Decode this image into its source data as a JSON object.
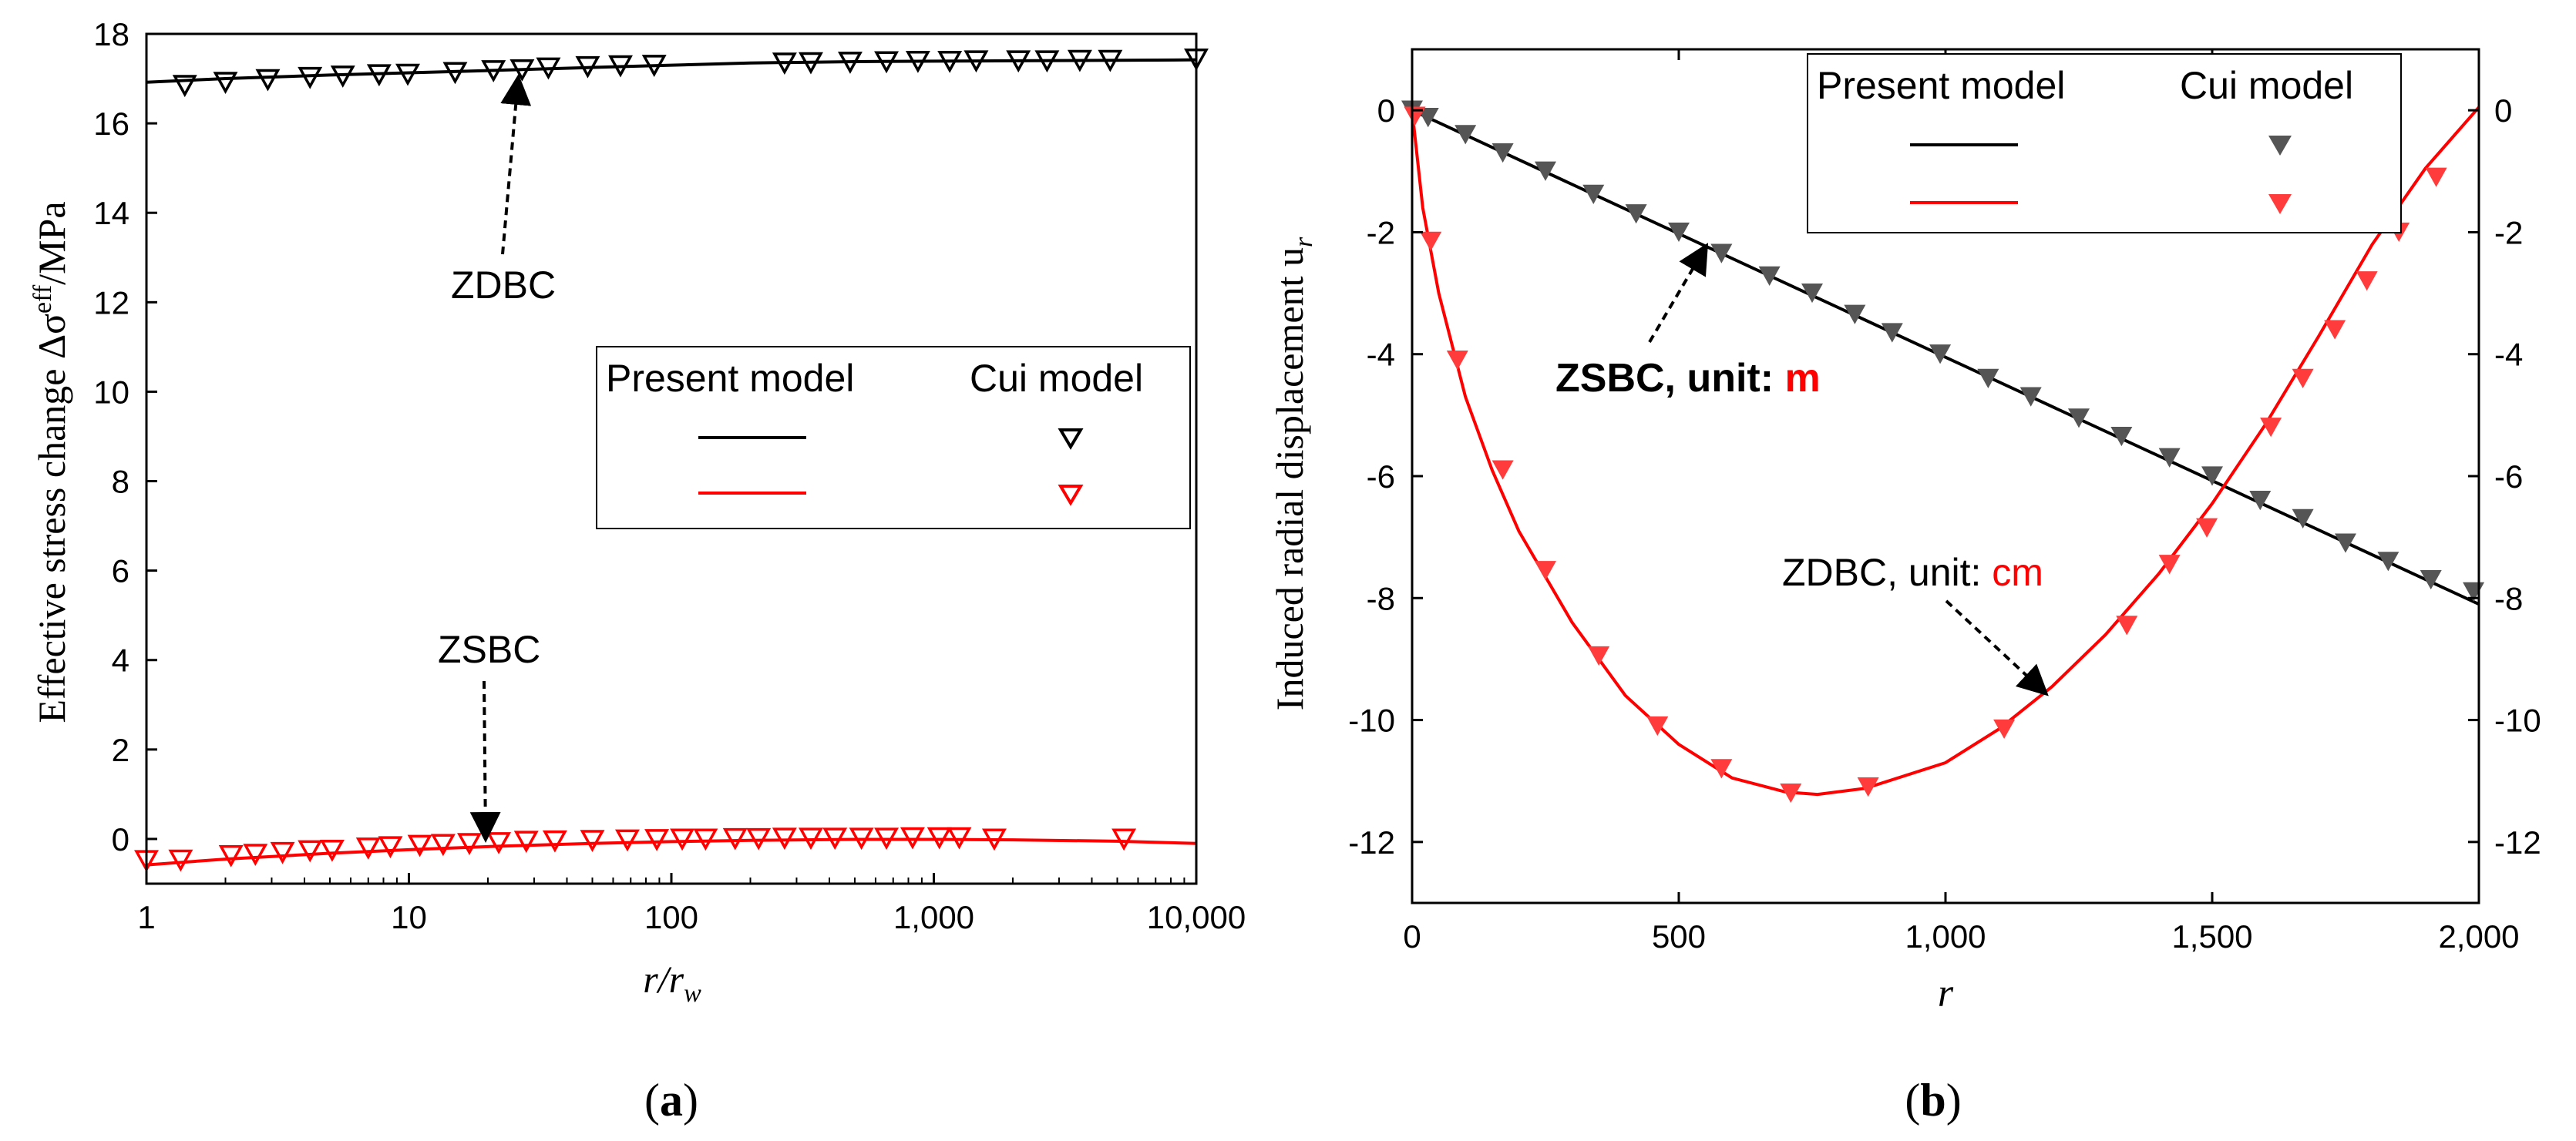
{
  "chart_data": [
    {
      "type": "line",
      "panel_label": "(a)",
      "ylabel_text": "Effective stress change Δσ",
      "ylabel_sup": "eff",
      "ylabel_unit": "/MPa",
      "xlabel_main": "r/r",
      "xlabel_sub": "w",
      "xscale": "log",
      "xlim": [
        1,
        10000
      ],
      "ylim": [
        -1,
        18
      ],
      "xticks": [
        1,
        10,
        100,
        1000,
        10000
      ],
      "xtick_labels": [
        "1",
        "10",
        "100",
        "1,000",
        "10,000"
      ],
      "yticks": [
        0,
        2,
        4,
        6,
        8,
        10,
        12,
        14,
        16,
        18
      ],
      "ytick_labels": [
        "0",
        "2",
        "4",
        "6",
        "8",
        "10",
        "12",
        "14",
        "16",
        "18"
      ],
      "grid": false,
      "legend": {
        "placement": "right-middle",
        "headers": [
          "Present model",
          "Cui model"
        ]
      },
      "series": [
        {
          "role": "ZDBC present model",
          "marker_kind": "line",
          "color": "#000000",
          "x": [
            1,
            2,
            5,
            10,
            20,
            50,
            100,
            200,
            500,
            1000,
            2000,
            5000,
            10000
          ],
          "y": [
            16.92,
            17.0,
            17.08,
            17.13,
            17.18,
            17.25,
            17.3,
            17.35,
            17.38,
            17.39,
            17.4,
            17.41,
            17.42
          ]
        },
        {
          "role": "ZDBC Cui model",
          "marker_kind": "hollow-triangle",
          "color": "#000000",
          "x": [
            1.4,
            2,
            2.9,
            4.2,
            5.6,
            7.7,
            9.9,
            15,
            21,
            27,
            34,
            48,
            64,
            86,
            270,
            340,
            480,
            660,
            870,
            1150,
            1450,
            2100,
            2700,
            3600,
            4700,
            10000
          ],
          "y": [
            16.85,
            16.92,
            16.98,
            17.03,
            17.06,
            17.09,
            17.1,
            17.14,
            17.18,
            17.2,
            17.24,
            17.27,
            17.29,
            17.3,
            17.35,
            17.36,
            17.37,
            17.38,
            17.39,
            17.39,
            17.4,
            17.4,
            17.4,
            17.41,
            17.41,
            17.44
          ]
        },
        {
          "role": "ZSBC present model",
          "marker_kind": "line",
          "color": "#ff0000",
          "x": [
            1,
            2,
            5,
            10,
            20,
            50,
            100,
            200,
            500,
            1000,
            2000,
            5000,
            10000
          ],
          "y": [
            -0.58,
            -0.45,
            -0.32,
            -0.24,
            -0.17,
            -0.1,
            -0.06,
            -0.03,
            -0.01,
            -0.01,
            -0.02,
            -0.05,
            -0.1
          ]
        },
        {
          "role": "ZSBC Cui model",
          "marker_kind": "hollow-triangle",
          "color": "#ff0000",
          "x": [
            1,
            1.35,
            2.1,
            2.6,
            3.3,
            4.2,
            5.1,
            7,
            8.5,
            11,
            13.5,
            17,
            22,
            28,
            36,
            50,
            68,
            88,
            110,
            135,
            175,
            215,
            270,
            340,
            420,
            530,
            660,
            830,
            1050,
            1250,
            1700,
            5300
          ],
          "y": [
            -0.48,
            -0.47,
            -0.37,
            -0.34,
            -0.3,
            -0.26,
            -0.25,
            -0.2,
            -0.17,
            -0.14,
            -0.12,
            -0.1,
            -0.08,
            -0.05,
            -0.04,
            -0.03,
            -0.02,
            -0.01,
            0.0,
            0.0,
            0.01,
            0.01,
            0.02,
            0.02,
            0.02,
            0.02,
            0.02,
            0.03,
            0.03,
            0.03,
            0.0,
            0.0
          ]
        }
      ],
      "annotations": [
        {
          "text": "ZDBC",
          "arrow_to": {
            "x": 27,
            "y": 17.25
          }
        },
        {
          "text": "ZSBC",
          "arrow_to": {
            "x": 20,
            "y": -0.05
          }
        }
      ]
    },
    {
      "type": "line",
      "panel_label": "(b)",
      "ylabel_text": "Induced radial displacement u",
      "ylabel_sub": "r",
      "xlabel": "r",
      "xlim": [
        0,
        2000
      ],
      "ylim": [
        -13,
        1
      ],
      "xticks": [
        0,
        500,
        1000,
        1500,
        2000
      ],
      "xtick_labels": [
        "0",
        "500",
        "1,000",
        "1,500",
        "2,000"
      ],
      "yticks": [
        0,
        -2,
        -4,
        -6,
        -8,
        -10,
        -12
      ],
      "ytick_labels": [
        "0",
        "-2",
        "-4",
        "-6",
        "-8",
        "-10",
        "-12"
      ],
      "right_axis": true,
      "grid": false,
      "legend": {
        "placement": "top-right",
        "headers": [
          "Present model",
          "Cui model"
        ]
      },
      "series": [
        {
          "role": "ZSBC present model (m)",
          "marker_kind": "line",
          "color": "#000000",
          "x": [
            0,
            2000
          ],
          "y": [
            0,
            -8.1
          ]
        },
        {
          "role": "ZSBC Cui model (m)",
          "marker_kind": "filled-triangle",
          "color": "#555555",
          "x": [
            0,
            30,
            100,
            170,
            250,
            340,
            420,
            500,
            580,
            670,
            750,
            830,
            900,
            990,
            1080,
            1160,
            1250,
            1330,
            1420,
            1500,
            1590,
            1670,
            1750,
            1830,
            1910,
            1990
          ],
          "y": [
            0,
            -0.12,
            -0.4,
            -0.7,
            -1.0,
            -1.38,
            -1.7,
            -2.0,
            -2.35,
            -2.72,
            -3.0,
            -3.35,
            -3.65,
            -4.0,
            -4.4,
            -4.7,
            -5.05,
            -5.35,
            -5.7,
            -6.0,
            -6.4,
            -6.7,
            -7.1,
            -7.4,
            -7.7,
            -7.9
          ]
        },
        {
          "role": "ZDBC present model (cm)",
          "marker_kind": "line",
          "color": "#ff0000",
          "x": [
            0,
            20,
            50,
            100,
            150,
            200,
            300,
            400,
            500,
            600,
            700,
            760,
            850,
            1000,
            1100,
            1200,
            1300,
            1400,
            1500,
            1600,
            1700,
            1800,
            1900,
            2000
          ],
          "y": [
            0,
            -1.6,
            -3.0,
            -4.7,
            -5.9,
            -6.9,
            -8.4,
            -9.6,
            -10.4,
            -10.95,
            -11.18,
            -11.22,
            -11.12,
            -10.7,
            -10.15,
            -9.45,
            -8.6,
            -7.6,
            -6.45,
            -5.15,
            -3.7,
            -2.2,
            -0.95,
            0.05
          ]
        },
        {
          "role": "ZDBC Cui model (cm)",
          "marker_kind": "filled-triangle",
          "color": "#ff3b3b",
          "x": [
            5,
            35,
            85,
            170,
            250,
            350,
            460,
            580,
            710,
            855,
            1110,
            1340,
            1420,
            1490,
            1610,
            1670,
            1730,
            1790,
            1850,
            1920
          ],
          "y": [
            -0.1,
            -2.15,
            -4.1,
            -5.9,
            -7.55,
            -8.95,
            -10.1,
            -10.8,
            -11.2,
            -11.1,
            -10.15,
            -8.45,
            -7.45,
            -6.85,
            -5.2,
            -4.4,
            -3.6,
            -2.8,
            -2.0,
            -1.1
          ]
        }
      ],
      "annotations": [
        {
          "text_bold": "ZSBC, unit: ",
          "text_red_bold": "m",
          "arrow_to": {
            "x": 560,
            "y": -2.3
          }
        },
        {
          "text": "ZDBC, unit: ",
          "text_red": "cm",
          "arrow_to": {
            "x": 1180,
            "y": -9.7
          }
        }
      ]
    }
  ]
}
